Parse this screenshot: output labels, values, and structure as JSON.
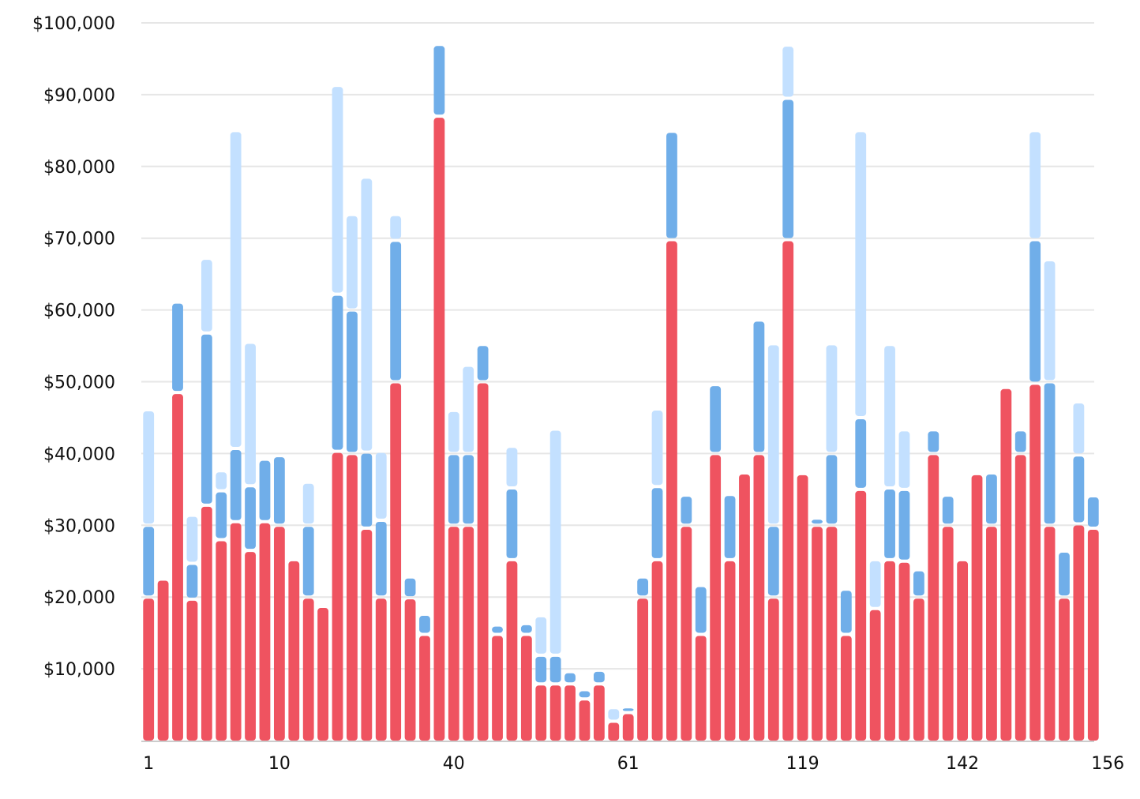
{
  "chart_data": {
    "type": "bar",
    "stacked": true,
    "ylim": [
      0,
      100000
    ],
    "yticks": [
      10000,
      20000,
      30000,
      40000,
      50000,
      60000,
      70000,
      80000,
      90000,
      100000
    ],
    "ytick_labels": [
      "$10,000",
      "$20,000",
      "$30,000",
      "$40,000",
      "$50,000",
      "$60,000",
      "$70,000",
      "$80,000",
      "$90,000",
      "$100,000"
    ],
    "xtick_labels": [
      {
        "index": 0,
        "label": "1"
      },
      {
        "index": 9,
        "label": "10"
      },
      {
        "index": 21,
        "label": "40"
      },
      {
        "index": 33,
        "label": "61"
      },
      {
        "index": 45,
        "label": "119"
      },
      {
        "index": 56,
        "label": "142"
      },
      {
        "index": 66,
        "label": "156"
      }
    ],
    "grid": true,
    "colors": {
      "red": "#ef5360",
      "blue": "#70aee9",
      "lightblue": "#c3e0ff",
      "grid": "#e6e6e6",
      "axis": "#cccccc"
    },
    "series": [
      {
        "color": "red",
        "values": [
          20000,
          22500,
          48500,
          19700,
          32800,
          28000,
          30500,
          26500,
          30500,
          30000,
          25200,
          20000,
          18700,
          40300,
          40000,
          29600,
          20000,
          50000,
          19900,
          14800,
          87000,
          30000,
          30000,
          50000,
          14800,
          25200,
          14800,
          7900,
          7900,
          7900,
          5800,
          7900,
          2700,
          3900,
          20000,
          25200,
          69800,
          30000,
          14800,
          40000,
          25200,
          37300,
          40000,
          20000,
          69800,
          37200,
          30000,
          30000,
          14800,
          35000,
          18400,
          25200,
          25000,
          20000,
          40000,
          30000,
          25200,
          37200,
          30000,
          49200,
          40000,
          49800,
          30000,
          20000,
          30200,
          29600
        ]
      },
      {
        "color": "blue",
        "values": [
          10000,
          0,
          12600,
          5000,
          24000,
          6800,
          10200,
          9000,
          8700,
          9700,
          0,
          10000,
          0,
          21900,
          20000,
          10600,
          10700,
          19700,
          2900,
          2800,
          10000,
          10000,
          10000,
          5200,
          1300,
          10000,
          1500,
          4000,
          4000,
          1700,
          1300,
          1900,
          0,
          800,
          2800,
          10200,
          15100,
          4200,
          6800,
          9600,
          9100,
          0,
          18600,
          10000,
          19700,
          0,
          1000,
          10000,
          6300,
          10000,
          0,
          10000,
          10000,
          3800,
          3300,
          4200,
          0,
          0,
          7300,
          0,
          3300,
          20000,
          20000,
          6400,
          9600,
          4500
        ]
      },
      {
        "color": "lightblue",
        "values": [
          16100,
          0,
          0,
          6700,
          10400,
          2800,
          44300,
          20000,
          0,
          0,
          0,
          6000,
          0,
          29100,
          13300,
          38300,
          9600,
          3600,
          0,
          0,
          0,
          6000,
          12300,
          0,
          0,
          5800,
          0,
          5500,
          31500,
          0,
          0,
          0,
          1900,
          0,
          0,
          10800,
          0,
          0,
          0,
          0,
          0,
          0,
          0,
          25300,
          7400,
          0,
          0,
          15300,
          0,
          40000,
          6800,
          20000,
          8300,
          0,
          0,
          0,
          0,
          0,
          0,
          0,
          0,
          15200,
          17000,
          0,
          7400,
          0
        ]
      }
    ]
  }
}
